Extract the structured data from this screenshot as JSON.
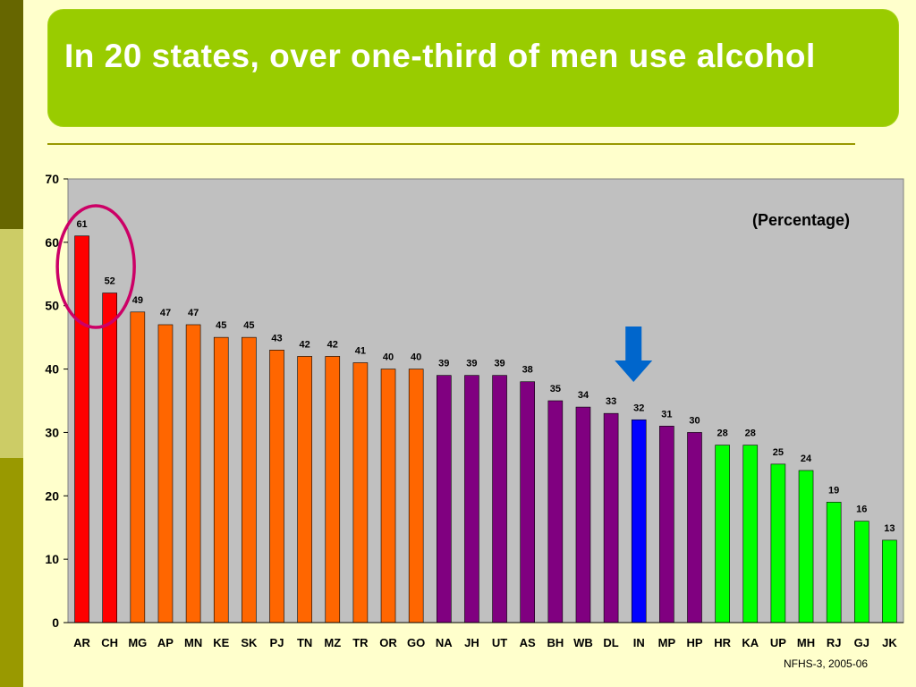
{
  "slide": {
    "title": "In 20 states, over one-third of men use alcohol",
    "source": "NFHS-3, 2005-06"
  },
  "colors": {
    "background": "#ffffcc",
    "title_box": "#99cc00",
    "plot_area": "#c0c0c0",
    "circle": "#cc0066",
    "arrow": "#0066cc"
  },
  "chart_data": {
    "type": "bar",
    "title": "",
    "annotation": "(Percentage)",
    "xlabel": "",
    "ylabel": "",
    "ylim": [
      0,
      70
    ],
    "yticks": [
      0,
      10,
      20,
      30,
      40,
      50,
      60,
      70
    ],
    "grid": false,
    "categories": [
      "AR",
      "CH",
      "MG",
      "AP",
      "MN",
      "KE",
      "SK",
      "PJ",
      "TN",
      "MZ",
      "TR",
      "OR",
      "GO",
      "NA",
      "JH",
      "UT",
      "AS",
      "BH",
      "WB",
      "DL",
      "IN",
      "MP",
      "HP",
      "HR",
      "KA",
      "UP",
      "MH",
      "RJ",
      "GJ",
      "JK"
    ],
    "values": [
      61,
      52,
      49,
      47,
      47,
      45,
      45,
      43,
      42,
      42,
      41,
      40,
      40,
      39,
      39,
      39,
      38,
      35,
      34,
      33,
      32,
      31,
      30,
      28,
      28,
      25,
      24,
      19,
      16,
      13
    ],
    "bar_colors": [
      "#ff0000",
      "#ff0000",
      "#ff6600",
      "#ff6600",
      "#ff6600",
      "#ff6600",
      "#ff6600",
      "#ff6600",
      "#ff6600",
      "#ff6600",
      "#ff6600",
      "#ff6600",
      "#ff6600",
      "#800080",
      "#800080",
      "#800080",
      "#800080",
      "#800080",
      "#800080",
      "#800080",
      "#0000ff",
      "#800080",
      "#800080",
      "#00ff00",
      "#00ff00",
      "#00ff00",
      "#00ff00",
      "#00ff00",
      "#00ff00",
      "#00ff00"
    ],
    "highlight_circle_categories": [
      "AR",
      "CH"
    ],
    "arrow_category": "IN"
  }
}
